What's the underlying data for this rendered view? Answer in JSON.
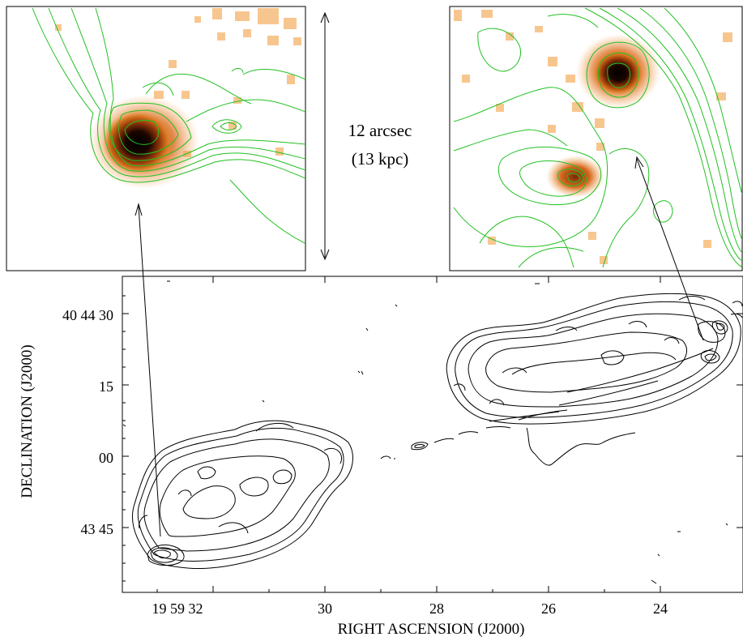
{
  "inset_annotation": {
    "size_arcsec": "12 arcsec",
    "size_kpc": "(13 kpc)"
  },
  "main_map": {
    "xlabel": "RIGHT ASCENSION (J2000)",
    "ylabel": "DECLINATION (J2000)",
    "x_ticks": [
      "19 59 32",
      "30",
      "28",
      "26",
      "24"
    ],
    "y_ticks": [
      "40 44 30",
      "15",
      "00",
      "43 45"
    ]
  },
  "colors": {
    "inset_contour": "#22c022",
    "hotspot_core": "#0a0000",
    "hotspot_mid": "#c85a10",
    "hotspot_outer": "#f2a24a",
    "main_contour": "#000000"
  }
}
